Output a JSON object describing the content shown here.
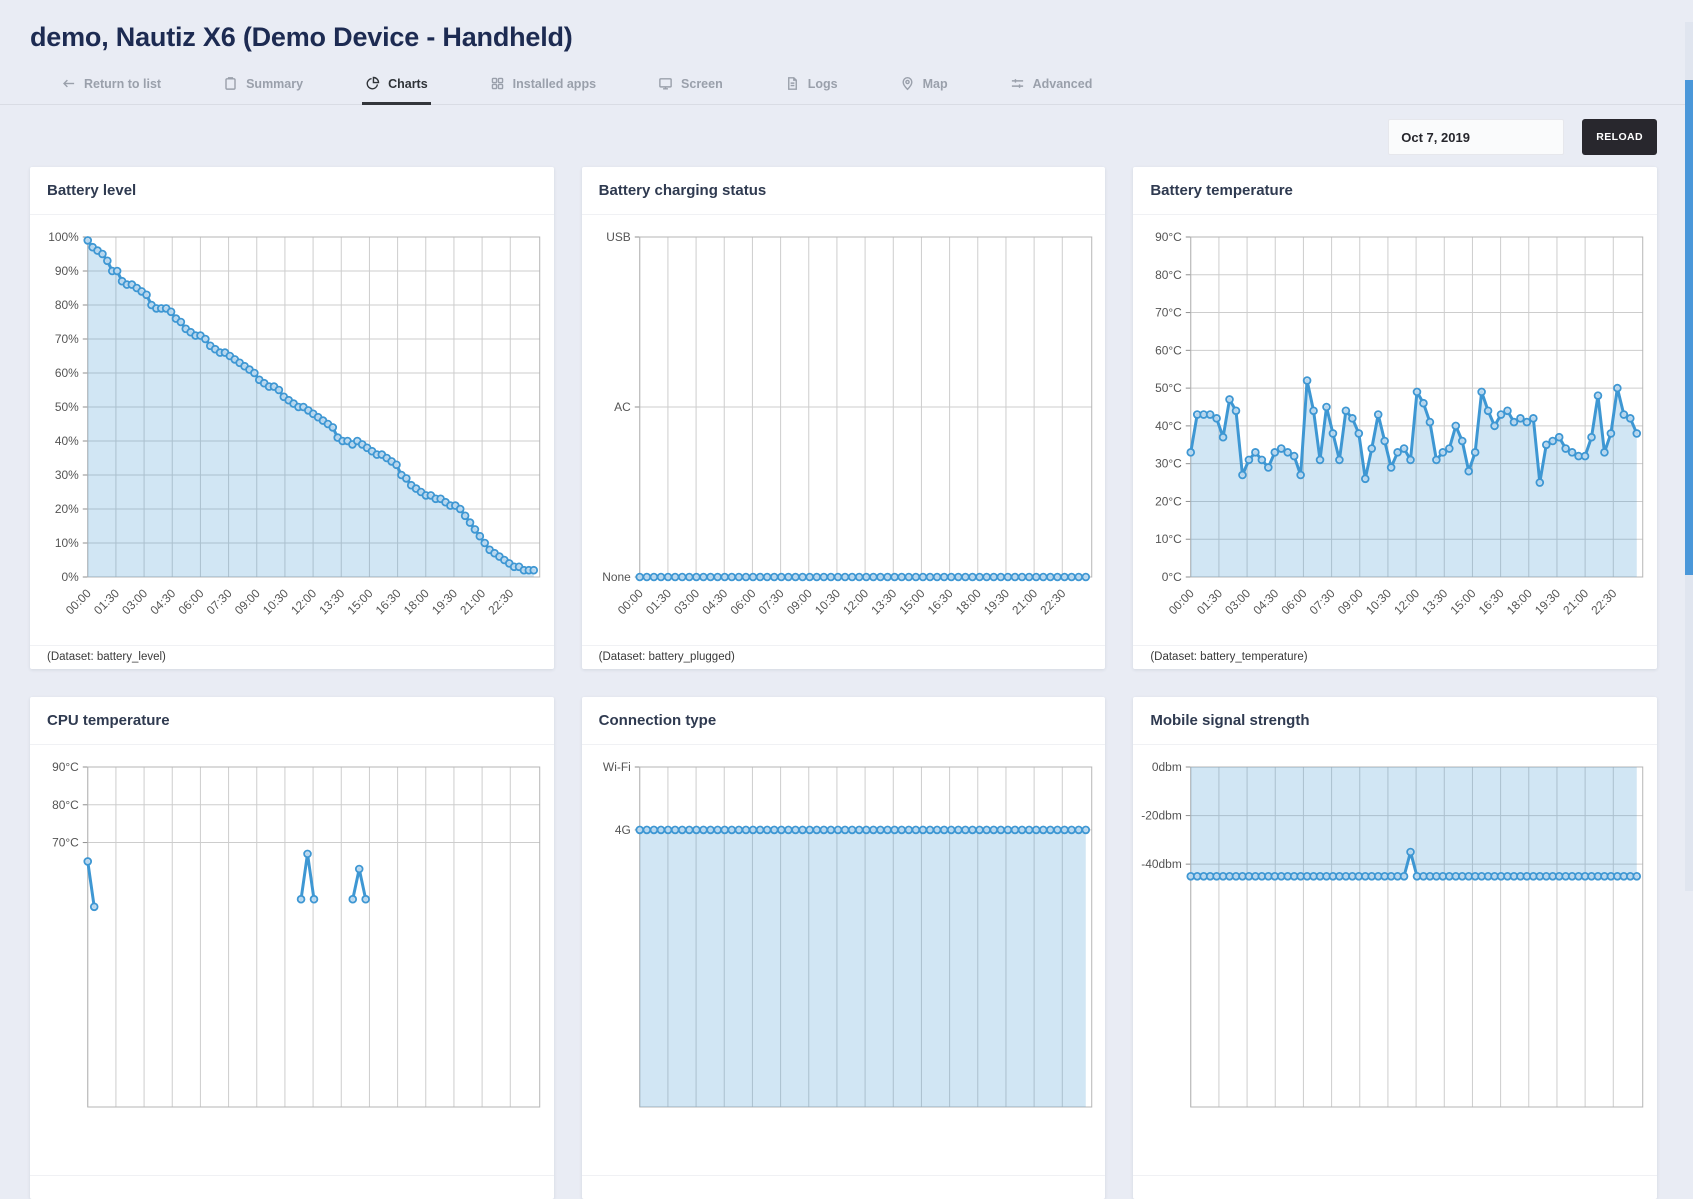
{
  "header": {
    "title": "demo, Nautiz X6 (Demo Device - Handheld)",
    "tabs": [
      {
        "label": "Return to list",
        "icon": "arrow-left-icon",
        "active": false
      },
      {
        "label": "Summary",
        "icon": "summary-icon",
        "active": false
      },
      {
        "label": "Charts",
        "icon": "charts-icon",
        "active": true
      },
      {
        "label": "Installed apps",
        "icon": "installed-apps-icon",
        "active": false
      },
      {
        "label": "Screen",
        "icon": "screen-icon",
        "active": false
      },
      {
        "label": "Logs",
        "icon": "logs-icon",
        "active": false
      },
      {
        "label": "Map",
        "icon": "map-icon",
        "active": false
      },
      {
        "label": "Advanced",
        "icon": "advanced-icon",
        "active": false
      }
    ]
  },
  "toolbar": {
    "date_value": "Oct 7, 2019",
    "reload_label": "RELOAD"
  },
  "colors": {
    "accent": "#3e97d3",
    "marker_fill": "#c3ddf1",
    "grid": "#cdcdcd",
    "plot_border": "#b6b6b6",
    "axis_text": "#545454",
    "page_bg": "#e9ecf4",
    "scrollbar_thumb": "#4a97d9"
  },
  "x_time_labels": [
    "00:00",
    "01:30",
    "03:00",
    "04:30",
    "06:00",
    "07:30",
    "09:00",
    "10:30",
    "12:00",
    "13:30",
    "15:00",
    "16:30",
    "18:00",
    "19:30",
    "21:00",
    "22:30"
  ],
  "chart_data": [
    {
      "title": "Battery level",
      "caption": "(Dataset: battery_level)",
      "type": "area",
      "area": true,
      "x_labels_visible": true,
      "y_axis": {
        "kind": "numeric",
        "min": 0,
        "max": 100,
        "ticks": [
          {
            "value": 100,
            "label": "100%"
          },
          {
            "value": 90,
            "label": "90%"
          },
          {
            "value": 80,
            "label": "80%"
          },
          {
            "value": 70,
            "label": "70%"
          },
          {
            "value": 60,
            "label": "60%"
          },
          {
            "value": 50,
            "label": "50%"
          },
          {
            "value": 40,
            "label": "40%"
          },
          {
            "value": 30,
            "label": "30%"
          },
          {
            "value": 20,
            "label": "20%"
          },
          {
            "value": 10,
            "label": "10%"
          },
          {
            "value": 0,
            "label": "0%"
          }
        ]
      },
      "values": [
        99,
        97,
        96,
        95,
        93,
        90,
        90,
        87,
        86,
        86,
        85,
        84,
        83,
        80,
        79,
        79,
        79,
        78,
        76,
        75,
        73,
        72,
        71,
        71,
        70,
        68,
        67,
        66,
        66,
        65,
        64,
        63,
        62,
        61,
        60,
        58,
        57,
        56,
        56,
        55,
        53,
        52,
        51,
        50,
        50,
        49,
        48,
        47,
        46,
        45,
        44,
        41,
        40,
        40,
        39,
        40,
        39,
        38,
        37,
        36,
        36,
        35,
        34,
        33,
        30,
        29,
        27,
        26,
        25,
        24,
        24,
        23,
        23,
        22,
        21,
        21,
        20,
        18,
        16,
        14,
        12,
        10,
        8,
        7,
        6,
        5,
        4,
        3,
        3,
        2,
        2,
        2
      ]
    },
    {
      "title": "Battery charging status",
      "caption": "(Dataset: battery_plugged)",
      "type": "line",
      "area": true,
      "x_labels_visible": true,
      "y_axis": {
        "kind": "category",
        "categories": [
          {
            "label": "USB",
            "f": 0
          },
          {
            "label": "AC",
            "f": 0.5
          },
          {
            "label": "None",
            "f": 1
          }
        ]
      },
      "constant_value": "None",
      "point_count": 64
    },
    {
      "title": "Battery temperature",
      "caption": "(Dataset: battery_temperature)",
      "type": "area",
      "area": true,
      "x_labels_visible": true,
      "y_axis": {
        "kind": "numeric",
        "min": 0,
        "max": 90,
        "ticks": [
          {
            "value": 90,
            "label": "90°C"
          },
          {
            "value": 80,
            "label": "80°C"
          },
          {
            "value": 70,
            "label": "70°C"
          },
          {
            "value": 60,
            "label": "60°C"
          },
          {
            "value": 50,
            "label": "50°C"
          },
          {
            "value": 40,
            "label": "40°C"
          },
          {
            "value": 30,
            "label": "30°C"
          },
          {
            "value": 20,
            "label": "20°C"
          },
          {
            "value": 10,
            "label": "10°C"
          },
          {
            "value": 0,
            "label": "0°C"
          }
        ]
      },
      "values": [
        33,
        43,
        43,
        43,
        42,
        37,
        47,
        44,
        27,
        31,
        33,
        31,
        29,
        33,
        34,
        33,
        32,
        27,
        52,
        44,
        31,
        45,
        38,
        31,
        44,
        42,
        38,
        26,
        34,
        43,
        36,
        29,
        33,
        34,
        31,
        49,
        46,
        41,
        31,
        33,
        34,
        40,
        36,
        28,
        33,
        49,
        44,
        40,
        43,
        44,
        41,
        42,
        41,
        42,
        25,
        35,
        36,
        37,
        34,
        33,
        32,
        32,
        37,
        48,
        33,
        38,
        50,
        43,
        42,
        38
      ]
    },
    {
      "title": "CPU temperature",
      "caption": "",
      "type": "line",
      "area": false,
      "x_labels_visible": false,
      "y_axis": {
        "kind": "numeric",
        "min": 0,
        "max": 90,
        "ticks": [
          {
            "value": 90,
            "label": "90°C"
          },
          {
            "value": 80,
            "label": "80°C"
          },
          {
            "value": 70,
            "label": "70°C"
          }
        ]
      },
      "count": 70,
      "points": [
        {
          "i": 0,
          "v": 65
        },
        {
          "i": 1,
          "v": 53
        },
        {
          "i": 33,
          "v": 55
        },
        {
          "i": 34,
          "v": 67
        },
        {
          "i": 35,
          "v": 55
        },
        {
          "i": 41,
          "v": 55
        },
        {
          "i": 42,
          "v": 63
        },
        {
          "i": 43,
          "v": 55
        }
      ]
    },
    {
      "title": "Connection type",
      "caption": "",
      "type": "line",
      "area": true,
      "x_labels_visible": false,
      "y_axis": {
        "kind": "category",
        "categories": [
          {
            "label": "Wi-Fi",
            "f": 0
          },
          {
            "label": "4G",
            "f": 0.185
          }
        ]
      },
      "constant_value": "4G",
      "point_count": 64
    },
    {
      "title": "Mobile signal strength",
      "caption": "",
      "type": "area",
      "area": true,
      "x_labels_visible": false,
      "y_axis": {
        "kind": "numeric",
        "min": -140,
        "max": 0,
        "ticks": [
          {
            "value": 0,
            "label": "0dbm"
          },
          {
            "value": -20,
            "label": "-20dbm"
          },
          {
            "value": -40,
            "label": "-40dbm"
          }
        ]
      },
      "base_value": -45,
      "count": 70,
      "points": [
        {
          "i": 34,
          "v": -35
        }
      ]
    }
  ]
}
